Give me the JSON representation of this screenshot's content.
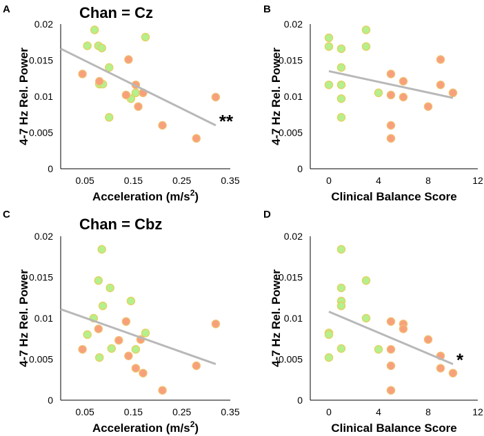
{
  "colors": {
    "young_fill": "#b4f08c",
    "young_stroke": "#e7cf5e",
    "older_fill": "#f8a07c",
    "older_stroke": "#f0c070",
    "fit_line": "#b8b8b8"
  },
  "chart_data": [
    {
      "panel": "A",
      "title": "Chan = Cz",
      "type": "scatter",
      "xlabel": "Acceleration (m/s",
      "xlabel_sup": "2",
      "xlabel_close": ")",
      "ylabel": "4-7 Hz Rel. Power",
      "xlim": [
        0,
        0.35
      ],
      "ylim": [
        0,
        0.02
      ],
      "xticks": [
        0.05,
        0.15,
        0.25,
        0.35
      ],
      "xtick_labels": [
        "0.05",
        "0.15",
        "0.25",
        "0.35"
      ],
      "yticks": [
        0,
        0.005,
        0.01,
        0.015,
        0.02
      ],
      "ytick_labels": [
        "0",
        "0.005",
        "0.01",
        "0.015",
        "0.02"
      ],
      "significance": "**",
      "fit": {
        "x": [
          0,
          0.32
        ],
        "y": [
          0.0166,
          0.006
        ]
      },
      "series": [
        {
          "name": "green",
          "color_key": "young",
          "points": [
            [
              0.055,
              0.017
            ],
            [
              0.07,
              0.0192
            ],
            [
              0.078,
              0.017
            ],
            [
              0.085,
              0.0167
            ],
            [
              0.08,
              0.0117
            ],
            [
              0.087,
              0.0117
            ],
            [
              0.1,
              0.014
            ],
            [
              0.145,
              0.0097
            ],
            [
              0.155,
              0.0105
            ],
            [
              0.175,
              0.0182
            ],
            [
              0.1,
              0.0071
            ]
          ]
        },
        {
          "name": "orange",
          "color_key": "older",
          "points": [
            [
              0.045,
              0.0131
            ],
            [
              0.08,
              0.0121
            ],
            [
              0.135,
              0.0102
            ],
            [
              0.14,
              0.0151
            ],
            [
              0.155,
              0.0116
            ],
            [
              0.16,
              0.0086
            ],
            [
              0.17,
              0.0105
            ],
            [
              0.21,
              0.006
            ],
            [
              0.28,
              0.0042
            ],
            [
              0.32,
              0.0099
            ]
          ]
        }
      ]
    },
    {
      "panel": "B",
      "title": "",
      "type": "scatter",
      "xlabel": "Clinical Balance Score",
      "xlabel_sup": "",
      "xlabel_close": "",
      "ylabel": "4-7 Hz Rel. Power",
      "xlim": [
        -1.5,
        12
      ],
      "ylim": [
        0,
        0.02
      ],
      "xticks": [
        0,
        4,
        8,
        12
      ],
      "xtick_labels": [
        "0",
        "4",
        "8",
        "12"
      ],
      "yticks": [
        0,
        0.005,
        0.01,
        0.015,
        0.02
      ],
      "ytick_labels": [
        "0",
        "0.005",
        "0.01",
        "0.015",
        "0.02"
      ],
      "significance": "",
      "fit": {
        "x": [
          0,
          10
        ],
        "y": [
          0.0135,
          0.0098
        ]
      },
      "series": [
        {
          "name": "green",
          "color_key": "young",
          "points": [
            [
              0,
              0.0181
            ],
            [
              0,
              0.0169
            ],
            [
              0,
              0.0116
            ],
            [
              1,
              0.0166
            ],
            [
              1,
              0.014
            ],
            [
              1,
              0.0116
            ],
            [
              1,
              0.0097
            ],
            [
              1,
              0.0071
            ],
            [
              3,
              0.0192
            ],
            [
              3,
              0.0169
            ],
            [
              4,
              0.0105
            ]
          ]
        },
        {
          "name": "orange",
          "color_key": "older",
          "points": [
            [
              5,
              0.0131
            ],
            [
              5,
              0.0102
            ],
            [
              5,
              0.006
            ],
            [
              5,
              0.0042
            ],
            [
              6,
              0.0121
            ],
            [
              6,
              0.0099
            ],
            [
              8,
              0.0086
            ],
            [
              9,
              0.0151
            ],
            [
              9,
              0.0116
            ],
            [
              10,
              0.0105
            ]
          ]
        }
      ]
    },
    {
      "panel": "C",
      "title": "Chan = Cbz",
      "type": "scatter",
      "xlabel": "Acceleration (m/s",
      "xlabel_sup": "2",
      "xlabel_close": ")",
      "ylabel": "4-7 Hz Rel. Power",
      "xlim": [
        0,
        0.35
      ],
      "ylim": [
        0,
        0.02
      ],
      "xticks": [
        0.05,
        0.15,
        0.25,
        0.35
      ],
      "xtick_labels": [
        "0.05",
        "0.15",
        "0.25",
        "0.35"
      ],
      "yticks": [
        0,
        0.005,
        0.01,
        0.015,
        0.02
      ],
      "ytick_labels": [
        "0",
        "0.005",
        "0.01",
        "0.015",
        "0.02"
      ],
      "significance": "",
      "fit": {
        "x": [
          0,
          0.32
        ],
        "y": [
          0.0111,
          0.0044
        ]
      },
      "series": [
        {
          "name": "green",
          "color_key": "young",
          "points": [
            [
              0.055,
              0.008
            ],
            [
              0.068,
              0.01
            ],
            [
              0.078,
              0.0146
            ],
            [
              0.08,
              0.0052
            ],
            [
              0.085,
              0.0184
            ],
            [
              0.087,
              0.0115
            ],
            [
              0.102,
              0.0137
            ],
            [
              0.105,
              0.0063
            ],
            [
              0.145,
              0.0121
            ],
            [
              0.155,
              0.0062
            ],
            [
              0.175,
              0.0082
            ]
          ]
        },
        {
          "name": "orange",
          "color_key": "older",
          "points": [
            [
              0.045,
              0.0062
            ],
            [
              0.078,
              0.0087
            ],
            [
              0.12,
              0.0073
            ],
            [
              0.135,
              0.0096
            ],
            [
              0.14,
              0.0054
            ],
            [
              0.155,
              0.0039
            ],
            [
              0.165,
              0.0074
            ],
            [
              0.17,
              0.0033
            ],
            [
              0.21,
              0.0012
            ],
            [
              0.28,
              0.0042
            ],
            [
              0.32,
              0.0093
            ]
          ]
        }
      ]
    },
    {
      "panel": "D",
      "title": "",
      "type": "scatter",
      "xlabel": "Clinical Balance Score",
      "xlabel_sup": "",
      "xlabel_close": "",
      "ylabel": "4-7 Hz Rel. Power",
      "xlim": [
        -1.5,
        12
      ],
      "ylim": [
        0,
        0.02
      ],
      "xticks": [
        0,
        4,
        8,
        12
      ],
      "xtick_labels": [
        "0",
        "4",
        "8",
        "12"
      ],
      "yticks": [
        0,
        0.005,
        0.01,
        0.015,
        0.02
      ],
      "ytick_labels": [
        "0",
        "0.005",
        "0.01",
        "0.015",
        "0.02"
      ],
      "significance": "*",
      "fit": {
        "x": [
          0,
          10
        ],
        "y": [
          0.0108,
          0.0044
        ]
      },
      "series": [
        {
          "name": "green",
          "color_key": "young",
          "points": [
            [
              0,
              0.0082
            ],
            [
              0,
              0.008
            ],
            [
              0,
              0.0052
            ],
            [
              1,
              0.0184
            ],
            [
              1,
              0.0137
            ],
            [
              1,
              0.0121
            ],
            [
              1,
              0.0115
            ],
            [
              1,
              0.0063
            ],
            [
              3,
              0.0146
            ],
            [
              3,
              0.01
            ],
            [
              4,
              0.0062
            ]
          ]
        },
        {
          "name": "orange",
          "color_key": "older",
          "points": [
            [
              5,
              0.0096
            ],
            [
              5,
              0.0062
            ],
            [
              5,
              0.0042
            ],
            [
              5,
              0.0012
            ],
            [
              6,
              0.0093
            ],
            [
              6,
              0.0087
            ],
            [
              8,
              0.0074
            ],
            [
              9,
              0.0054
            ],
            [
              9,
              0.0039
            ],
            [
              10,
              0.0033
            ]
          ]
        }
      ]
    }
  ]
}
